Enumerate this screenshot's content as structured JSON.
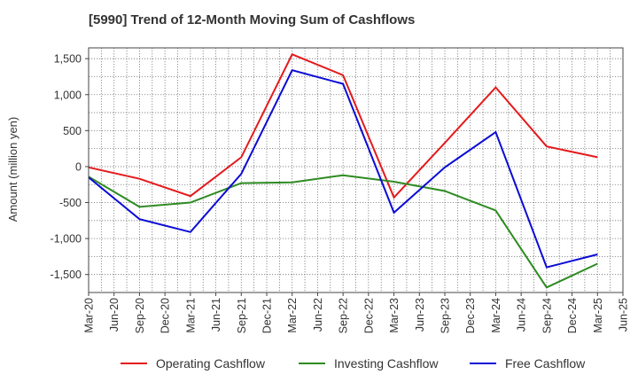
{
  "chart_data": {
    "type": "line",
    "title": "[5990]  Trend of 12-Month Moving Sum of Cashflows",
    "xlabel": "",
    "ylabel": "Amount (million yen)",
    "ylim": [
      -1750,
      1650
    ],
    "yticks": [
      1500,
      1000,
      500,
      0,
      -500,
      -1000,
      -1500
    ],
    "ytick_labels": [
      "1,500",
      "1,000",
      "500",
      "0",
      "-500",
      "-1,000",
      "-1,500"
    ],
    "x": [
      "Mar-20",
      "Jun-20",
      "Sep-20",
      "Dec-20",
      "Mar-21",
      "Jun-21",
      "Sep-21",
      "Dec-21",
      "Mar-22",
      "Jun-22",
      "Sep-22",
      "Dec-22",
      "Mar-23",
      "Jun-23",
      "Sep-23",
      "Dec-23",
      "Mar-24",
      "Jun-24",
      "Sep-24",
      "Dec-24",
      "Mar-25",
      "Jun-25"
    ],
    "grid": true,
    "legend_position": "bottom",
    "series": [
      {
        "name": "Operating Cashflow",
        "color": "#e41a1c",
        "values": [
          -10,
          null,
          -170,
          null,
          -410,
          null,
          130,
          null,
          1560,
          null,
          1270,
          null,
          -430,
          null,
          330,
          null,
          1100,
          null,
          280,
          null,
          130,
          null
        ]
      },
      {
        "name": "Investing Cashflow",
        "color": "#2e8b22",
        "values": [
          -140,
          null,
          -560,
          null,
          -500,
          null,
          -230,
          null,
          -220,
          null,
          -120,
          null,
          -210,
          null,
          -340,
          null,
          -610,
          null,
          -1680,
          null,
          -1350,
          null
        ]
      },
      {
        "name": "Free Cashflow",
        "color": "#0b0bd6",
        "values": [
          -150,
          null,
          -730,
          null,
          -910,
          null,
          -100,
          null,
          1340,
          null,
          1150,
          null,
          -640,
          null,
          -10,
          null,
          480,
          null,
          -1400,
          null,
          -1220,
          null
        ]
      }
    ]
  }
}
